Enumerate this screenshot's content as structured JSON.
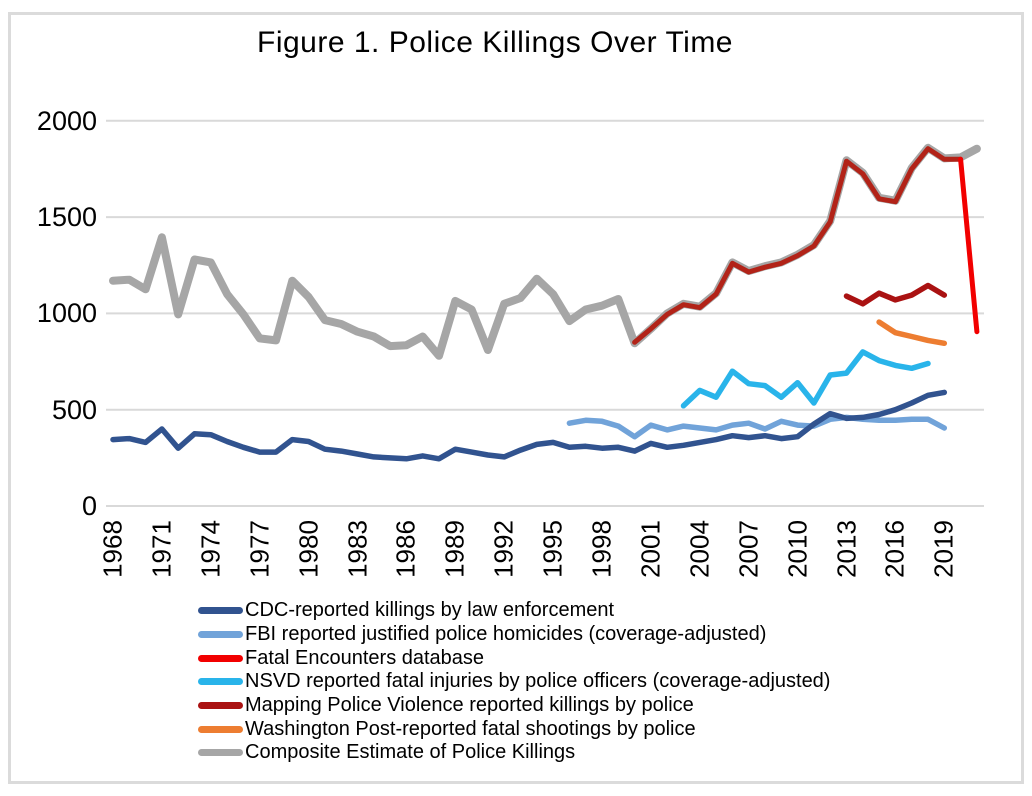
{
  "figure": {
    "title": "Figure 1. Police Killings Over Time",
    "background_color": "#FFFFFF",
    "frame_border_color": "#DBDBDB"
  },
  "chart_data": {
    "type": "line",
    "title": "Figure 1. Police Killings Over Time",
    "xlabel": "",
    "ylabel": "",
    "x_range": [
      1968,
      2021
    ],
    "ylim": [
      0,
      2000
    ],
    "yticks": [
      0,
      500,
      1000,
      1500,
      2000
    ],
    "xticks": [
      1968,
      1971,
      1974,
      1977,
      1980,
      1983,
      1986,
      1989,
      1992,
      1995,
      1998,
      2001,
      2004,
      2007,
      2010,
      2013,
      2016,
      2019
    ],
    "grid": "horizontal",
    "gridline_color": "#D9D9D9",
    "legend_position": "bottom-left",
    "series": [
      {
        "name": "CDC-reported killings by law enforcement",
        "color": "#31538F",
        "start_year": 1968,
        "values": [
          345,
          350,
          330,
          400,
          300,
          375,
          370,
          335,
          305,
          280,
          280,
          345,
          335,
          295,
          285,
          270,
          255,
          250,
          245,
          260,
          245,
          295,
          280,
          265,
          255,
          290,
          320,
          330,
          305,
          310,
          300,
          305,
          285,
          325,
          305,
          315,
          330,
          345,
          365,
          355,
          365,
          350,
          360,
          425,
          480,
          455,
          460,
          475,
          500,
          535,
          575,
          590
        ]
      },
      {
        "name": "FBI reported justified police homicides (coverage-adjusted)",
        "color": "#71A3D9",
        "start_year": 1996,
        "values": [
          430,
          445,
          440,
          415,
          360,
          420,
          395,
          415,
          405,
          395,
          420,
          430,
          400,
          440,
          420,
          415,
          450,
          460,
          450,
          445,
          445,
          450,
          450,
          405
        ]
      },
      {
        "name": "Fatal Encounters database",
        "color": "#F20000",
        "rendered_overlap_color": "#B22318",
        "start_year": 2000,
        "tail_from_year": 2020,
        "values": [
          850,
          920,
          995,
          1045,
          1030,
          1100,
          1260,
          1215,
          1240,
          1260,
          1300,
          1350,
          1475,
          1790,
          1725,
          1595,
          1580,
          1750,
          1855,
          1800,
          1800,
          905
        ]
      },
      {
        "name": "NSVD reported fatal injuries by police officers (coverage-adjusted)",
        "color": "#29B4EA",
        "start_year": 2003,
        "values": [
          520,
          600,
          565,
          700,
          635,
          625,
          565,
          640,
          535,
          680,
          690,
          800,
          755,
          730,
          715,
          740
        ]
      },
      {
        "name": "Mapping Police Violence reported killings by police",
        "color": "#AA1212",
        "start_year": 2013,
        "values": [
          1090,
          1050,
          1105,
          1070,
          1095,
          1145,
          1095
        ]
      },
      {
        "name": "Washington Post-reported fatal shootings by police",
        "color": "#ED7D31",
        "start_year": 2015,
        "values": [
          955,
          900,
          880,
          860,
          845
        ]
      },
      {
        "name": "Composite Estimate of Police Killings",
        "color": "#A6A6A6",
        "start_year": 1968,
        "values": [
          1170,
          1175,
          1125,
          1395,
          995,
          1280,
          1265,
          1100,
          995,
          870,
          860,
          1170,
          1085,
          965,
          945,
          905,
          880,
          830,
          835,
          880,
          780,
          1065,
          1020,
          810,
          1050,
          1080,
          1180,
          1100,
          960,
          1020,
          1040,
          1075,
          845,
          920,
          1000,
          1050,
          1035,
          1105,
          1265,
          1220,
          1245,
          1265,
          1305,
          1355,
          1480,
          1795,
          1730,
          1600,
          1585,
          1755,
          1860,
          1805,
          1810,
          1855
        ]
      }
    ]
  }
}
